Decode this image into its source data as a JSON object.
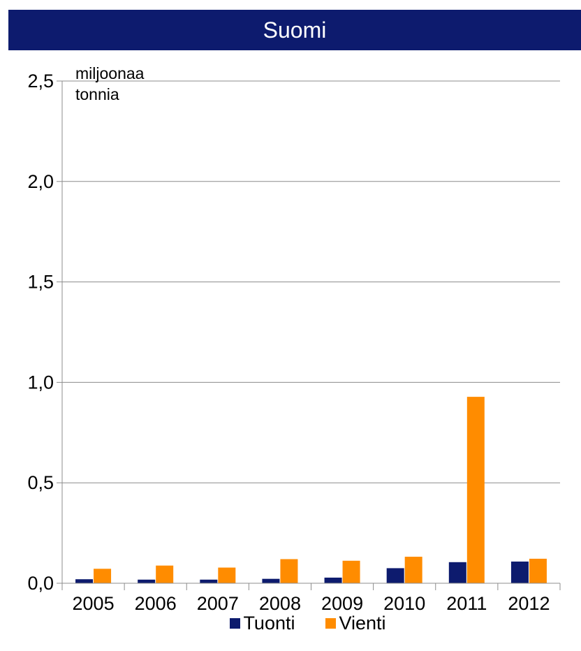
{
  "chart_data": {
    "type": "bar",
    "title": "Suomi",
    "unit_label_line1": "miljoonaa",
    "unit_label_line2": "tonnia",
    "categories": [
      "2005",
      "2006",
      "2007",
      "2008",
      "2009",
      "2010",
      "2011",
      "2012"
    ],
    "series": [
      {
        "name": "Tuonti",
        "color": "#0d1b6e",
        "values": [
          0.02,
          0.018,
          0.018,
          0.022,
          0.028,
          0.075,
          0.105,
          0.108
        ]
      },
      {
        "name": "Vienti",
        "color": "#ff8c00",
        "values": [
          0.072,
          0.088,
          0.078,
          0.12,
          0.112,
          0.132,
          0.928,
          0.122
        ]
      }
    ],
    "ylim": [
      0,
      2.5
    ],
    "yticks": [
      "0,0",
      "0,5",
      "1,0",
      "1,5",
      "2,0",
      "2,5"
    ],
    "ytick_values": [
      0,
      0.5,
      1.0,
      1.5,
      2.0,
      2.5
    ],
    "grid": true,
    "legend_position": "bottom"
  }
}
